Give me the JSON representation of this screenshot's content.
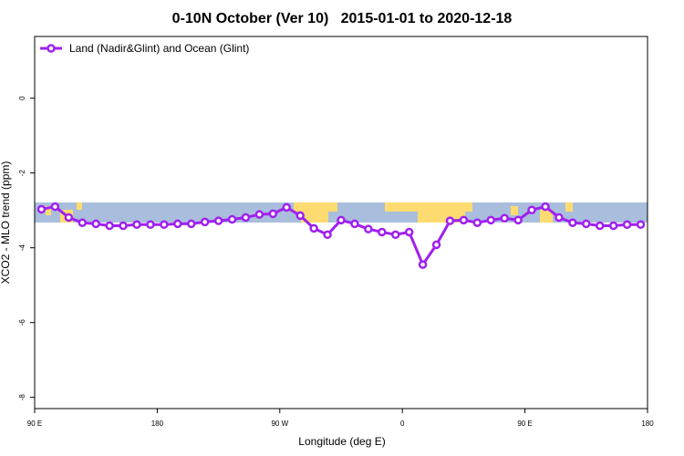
{
  "chart_data": {
    "type": "line",
    "title": "0-10N October (Ver 10)   2015-01-01 to 2020-12-18",
    "x_label": "Longitude (deg E)",
    "y_label": "XCO2 - MLO trend (ppm)",
    "x": [
      95,
      105,
      115,
      125,
      135,
      145,
      155,
      165,
      175,
      185,
      195,
      205,
      215,
      225,
      235,
      245,
      255,
      265,
      275,
      285,
      295,
      305,
      315,
      325,
      335,
      345,
      355,
      365,
      375,
      385,
      395,
      405,
      415,
      425,
      435,
      445,
      455,
      465,
      475,
      485,
      495,
      505,
      515,
      525,
      535
    ],
    "series": [
      {
        "name": "Land (Nadir&Glint) and Ocean (Glint)",
        "color": "#a020f0",
        "values": [
          -2.97,
          -2.9,
          -3.19,
          -3.33,
          -3.36,
          -3.41,
          -3.41,
          -3.38,
          -3.38,
          -3.38,
          -3.36,
          -3.36,
          -3.31,
          -3.28,
          -3.24,
          -3.19,
          -3.11,
          -3.09,
          -2.92,
          -3.14,
          -3.48,
          -3.65,
          -3.26,
          -3.36,
          -3.5,
          -3.58,
          -3.65,
          -3.58,
          -4.45,
          -3.92,
          -3.28,
          -3.26,
          -3.33,
          -3.26,
          -3.21,
          -3.26,
          -2.99,
          -2.9,
          -3.19,
          -3.33,
          -3.36,
          -3.41,
          -3.41,
          -3.38,
          -3.38
        ]
      }
    ],
    "xlim": [
      90,
      540
    ],
    "xticks": [
      {
        "value": 90,
        "label": "90 E"
      },
      {
        "value": 180,
        "label": "180"
      },
      {
        "value": 270,
        "label": "90 W"
      },
      {
        "value": 360,
        "label": "0"
      },
      {
        "value": 450,
        "label": "90 E"
      },
      {
        "value": 540,
        "label": "180"
      }
    ],
    "ylim": [
      -8.3,
      1.65
    ],
    "yticks": [
      0,
      -2,
      -4,
      -6,
      -8
    ],
    "legend": "top-left"
  }
}
